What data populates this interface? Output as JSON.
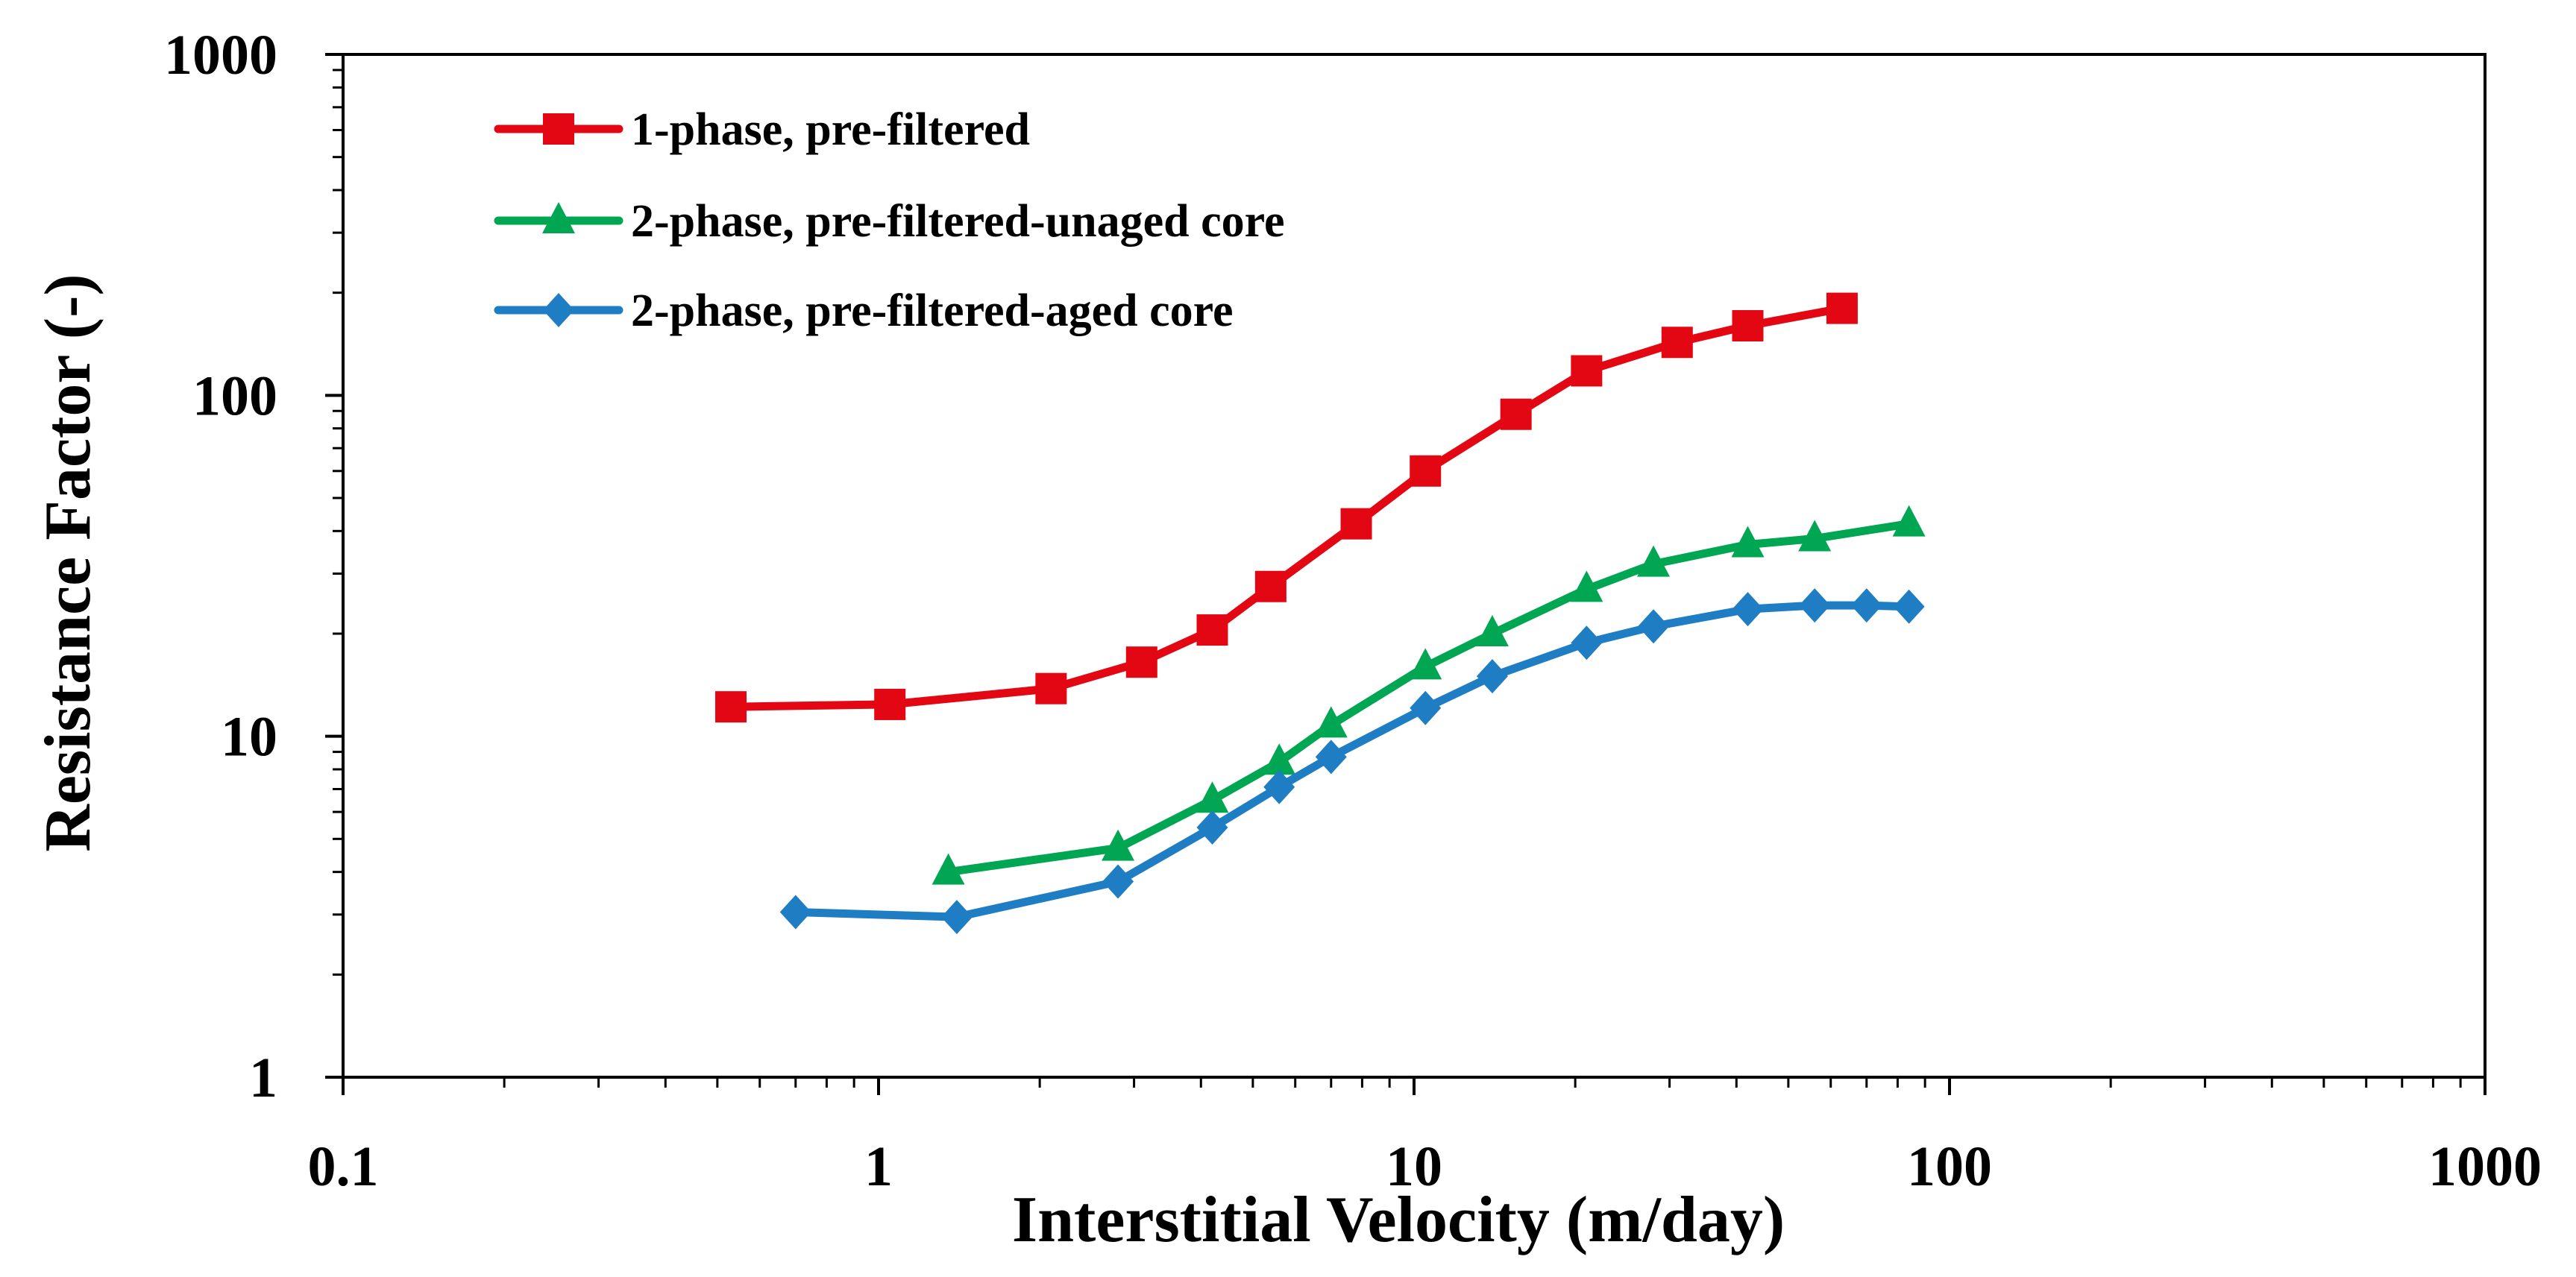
{
  "chart_data": {
    "type": "line",
    "title": "",
    "xlabel": "Interstitial Velocity (m/day)",
    "ylabel": "Resistance Factor (-)",
    "xscale": "log",
    "yscale": "log",
    "xlim": [
      0.1,
      1000
    ],
    "ylim": [
      1,
      1000
    ],
    "xticks": [
      0.1,
      1,
      10,
      100,
      1000
    ],
    "xtick_labels": [
      "0.1",
      "1",
      "10",
      "100",
      "1000"
    ],
    "yticks": [
      1,
      10,
      100,
      1000
    ],
    "ytick_labels": [
      "1",
      "10",
      "100",
      "1000"
    ],
    "grid": false,
    "legend_position": "top-left",
    "series": [
      {
        "name": "1-phase, pre-filtered",
        "color": "#e30613",
        "marker": "square",
        "x": [
          0.53,
          1.05,
          2.1,
          3.1,
          4.2,
          5.4,
          7.8,
          10.5,
          15.5,
          21,
          31,
          42,
          63
        ],
        "y": [
          12.2,
          12.4,
          13.8,
          16.5,
          20.5,
          27.5,
          42,
          60,
          88,
          118,
          143,
          160,
          180
        ]
      },
      {
        "name": "2-phase, pre-filtered-unaged core",
        "color": "#00a651",
        "marker": "triangle",
        "x": [
          1.35,
          2.8,
          4.2,
          5.6,
          7,
          10.5,
          14,
          21,
          28,
          42,
          56,
          84
        ],
        "y": [
          4,
          4.7,
          6.5,
          8.4,
          10.8,
          16,
          20,
          27,
          32,
          36.5,
          38,
          42
        ]
      },
      {
        "name": "2-phase, pre-filtered-aged core",
        "color": "#1f7dc4",
        "marker": "diamond",
        "x": [
          0.7,
          1.4,
          2.8,
          4.2,
          5.6,
          7,
          10.5,
          14,
          21,
          28,
          42,
          56,
          70,
          84
        ],
        "y": [
          3.05,
          2.95,
          3.75,
          5.4,
          7.1,
          8.7,
          12.1,
          15,
          18.8,
          21,
          23.6,
          24.2,
          24.2,
          24
        ]
      }
    ]
  }
}
